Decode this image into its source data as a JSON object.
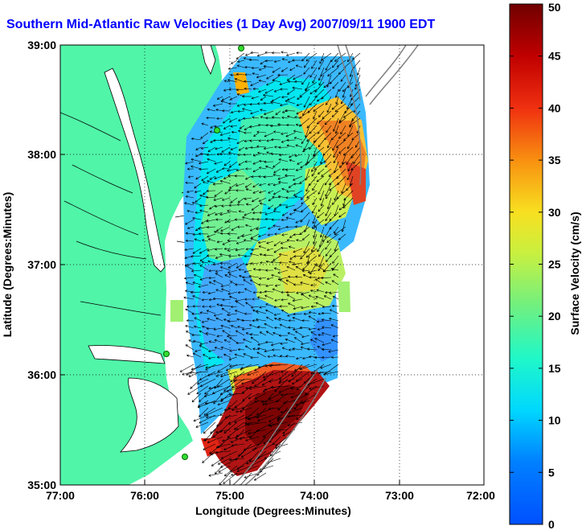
{
  "title": "Southern Mid-Atlantic Raw Velocities (1 Day Avg) 2007/09/11 1900 EDT",
  "xlabel": "Longitude (Degrees:Minutes)",
  "ylabel": "Latitude (Degrees:Minutes)",
  "colorbar": {
    "label": "Surface Velocity (cm/s)",
    "min": 0,
    "max": 50,
    "ticks": [
      "0",
      "5",
      "10",
      "15",
      "20",
      "25",
      "30",
      "35",
      "40",
      "45",
      "50"
    ]
  },
  "axes": {
    "x_ticks": [
      "77:00",
      "76:00",
      "75:00",
      "74:00",
      "73:00",
      "72:00"
    ],
    "y_ticks": [
      "35:00",
      "36:00",
      "37:00",
      "38:00",
      "39:00"
    ],
    "lon_range": [
      -77,
      -72
    ],
    "lat_range": [
      35,
      39
    ],
    "grid": "dotted"
  },
  "colors": {
    "land": "#50f5a8",
    "frame": "#000000",
    "coastline": "#000000",
    "bathymetry": "#808080",
    "stations": "#33dd33"
  }
}
